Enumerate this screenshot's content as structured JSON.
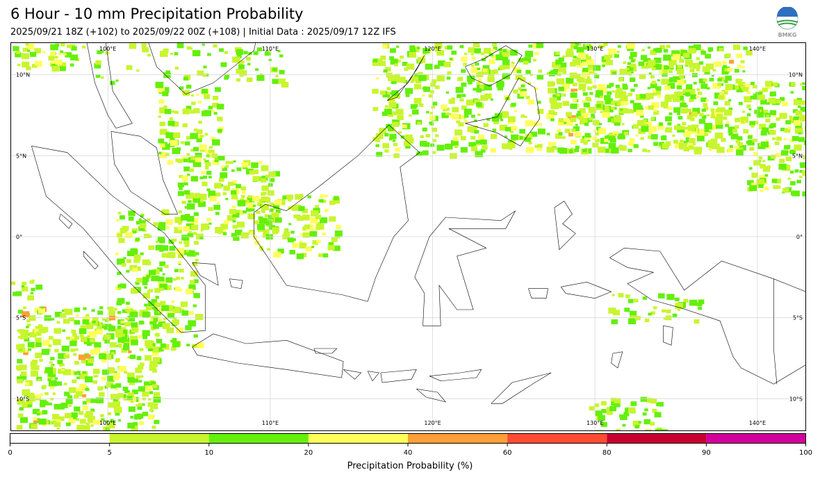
{
  "header": {
    "title": "6 Hour - 10 mm Precipitation Probability",
    "subtitle": "2025/09/21 18Z (+102) to 2025/09/22 00Z (+108) | Initial Data : 2025/09/17 12Z IFS",
    "logo_text": "BMKG"
  },
  "map": {
    "lon_labels": [
      "100°E",
      "110°E",
      "120°E",
      "130°E",
      "140°E"
    ],
    "lat_labels": [
      "10°N",
      "5°N",
      "0°",
      "5°S",
      "10°S"
    ],
    "lon_range": [
      94,
      143
    ],
    "lat_range": [
      12,
      -12
    ]
  },
  "colorbar": {
    "label": "Precipitation Probability (%)",
    "ticks": [
      "0",
      "5",
      "10",
      "20",
      "40",
      "60",
      "80",
      "90",
      "100"
    ],
    "colors": [
      "#ffffff",
      "#c8f52d",
      "#64f00a",
      "#ffff5a",
      "#ff9f37",
      "#ff4b32",
      "#c8002d",
      "#d2009b"
    ]
  },
  "colors": {
    "land_outline": "#000000",
    "prob_5_10": "#c8f52d",
    "prob_10_20": "#64f00a",
    "prob_20_40": "#ffff5a",
    "prob_40_60": "#ff9f37"
  }
}
